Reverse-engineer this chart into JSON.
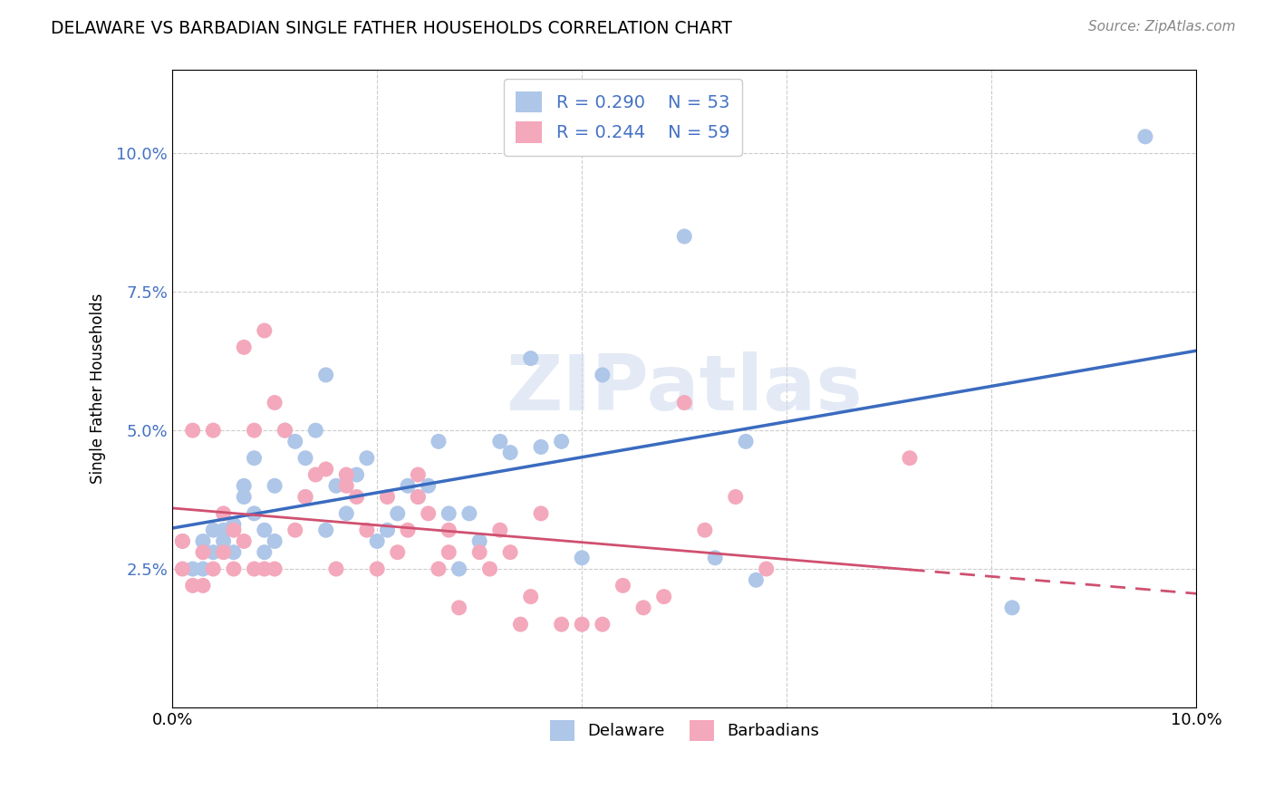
{
  "title": "DELAWARE VS BARBADIAN SINGLE FATHER HOUSEHOLDS CORRELATION CHART",
  "source": "Source: ZipAtlas.com",
  "ylabel": "Single Father Households",
  "xlim": [
    0.0,
    0.1
  ],
  "ylim": [
    0.0,
    0.115
  ],
  "yticks": [
    0.025,
    0.05,
    0.075,
    0.1
  ],
  "ytick_labels": [
    "2.5%",
    "5.0%",
    "7.5%",
    "10.0%"
  ],
  "xtick_vals": [
    0.0,
    0.02,
    0.04,
    0.06,
    0.08,
    0.1
  ],
  "xtick_labels": [
    "0.0%",
    "",
    "",
    "",
    "",
    "10.0%"
  ],
  "delaware_R": 0.29,
  "delaware_N": 53,
  "barbadian_R": 0.244,
  "barbadian_N": 59,
  "delaware_color": "#aec6e8",
  "barbadian_color": "#f4a8bc",
  "delaware_line_color": "#3a6bbf",
  "barbadian_line_color": "#d05070",
  "tick_color": "#4472c4",
  "background_color": "#ffffff",
  "watermark": "ZIPatlas",
  "delaware_x": [
    0.001,
    0.002,
    0.003,
    0.003,
    0.004,
    0.004,
    0.005,
    0.005,
    0.006,
    0.006,
    0.007,
    0.007,
    0.008,
    0.008,
    0.009,
    0.009,
    0.01,
    0.01,
    0.011,
    0.012,
    0.013,
    0.013,
    0.014,
    0.015,
    0.015,
    0.016,
    0.017,
    0.018,
    0.019,
    0.02,
    0.021,
    0.022,
    0.023,
    0.024,
    0.025,
    0.026,
    0.027,
    0.028,
    0.029,
    0.03,
    0.032,
    0.033,
    0.035,
    0.036,
    0.038,
    0.04,
    0.042,
    0.05,
    0.053,
    0.056,
    0.057,
    0.082,
    0.095
  ],
  "delaware_y": [
    0.03,
    0.025,
    0.03,
    0.025,
    0.028,
    0.032,
    0.03,
    0.032,
    0.033,
    0.028,
    0.04,
    0.038,
    0.035,
    0.045,
    0.032,
    0.028,
    0.04,
    0.03,
    0.05,
    0.048,
    0.038,
    0.045,
    0.05,
    0.06,
    0.032,
    0.04,
    0.035,
    0.042,
    0.045,
    0.03,
    0.032,
    0.035,
    0.04,
    0.038,
    0.04,
    0.048,
    0.035,
    0.025,
    0.035,
    0.03,
    0.048,
    0.046,
    0.063,
    0.047,
    0.048,
    0.027,
    0.06,
    0.085,
    0.027,
    0.048,
    0.023,
    0.018,
    0.103
  ],
  "barbadian_x": [
    0.001,
    0.001,
    0.002,
    0.002,
    0.003,
    0.003,
    0.004,
    0.004,
    0.005,
    0.005,
    0.006,
    0.006,
    0.007,
    0.007,
    0.008,
    0.008,
    0.009,
    0.009,
    0.01,
    0.01,
    0.011,
    0.012,
    0.013,
    0.014,
    0.015,
    0.016,
    0.017,
    0.017,
    0.018,
    0.019,
    0.02,
    0.021,
    0.022,
    0.023,
    0.024,
    0.024,
    0.025,
    0.026,
    0.027,
    0.027,
    0.028,
    0.03,
    0.031,
    0.032,
    0.033,
    0.034,
    0.035,
    0.036,
    0.038,
    0.04,
    0.042,
    0.044,
    0.046,
    0.048,
    0.05,
    0.052,
    0.055,
    0.058,
    0.072
  ],
  "barbadian_y": [
    0.025,
    0.03,
    0.022,
    0.05,
    0.028,
    0.022,
    0.025,
    0.05,
    0.035,
    0.028,
    0.032,
    0.025,
    0.065,
    0.03,
    0.025,
    0.05,
    0.068,
    0.025,
    0.055,
    0.025,
    0.05,
    0.032,
    0.038,
    0.042,
    0.043,
    0.025,
    0.04,
    0.042,
    0.038,
    0.032,
    0.025,
    0.038,
    0.028,
    0.032,
    0.038,
    0.042,
    0.035,
    0.025,
    0.032,
    0.028,
    0.018,
    0.028,
    0.025,
    0.032,
    0.028,
    0.015,
    0.02,
    0.035,
    0.015,
    0.015,
    0.015,
    0.022,
    0.018,
    0.02,
    0.055,
    0.032,
    0.038,
    0.025,
    0.045
  ]
}
